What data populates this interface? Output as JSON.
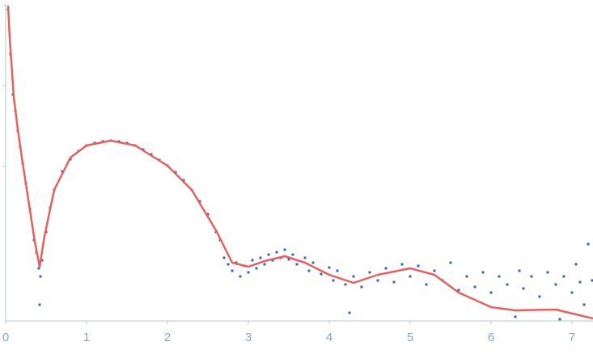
{
  "chart_data": {
    "type": "scatter",
    "xlim": [
      0,
      7.26
    ],
    "ylim": [
      0,
      3.9
    ],
    "xticks": [
      0,
      1,
      2,
      3,
      4,
      5,
      6,
      7
    ],
    "series": [
      {
        "type": "scatter",
        "color": "#3a66b8",
        "x": [
          0.03,
          0.06,
          0.09,
          0.12,
          0.15,
          0.18,
          0.21,
          0.25,
          0.3,
          0.35,
          0.38,
          0.41,
          0.42,
          0.43,
          0.45,
          0.5,
          0.55,
          0.6,
          0.7,
          0.8,
          0.9,
          1.0,
          1.1,
          1.2,
          1.3,
          1.4,
          1.5,
          1.6,
          1.7,
          1.8,
          1.9,
          2.0,
          2.1,
          2.2,
          2.3,
          2.4,
          2.5,
          2.6,
          2.65,
          2.7,
          2.75,
          2.8,
          2.85,
          2.9,
          2.95,
          3.0,
          3.05,
          3.1,
          3.15,
          3.2,
          3.25,
          3.3,
          3.35,
          3.4,
          3.45,
          3.5,
          3.55,
          3.6,
          3.7,
          3.75,
          3.8,
          3.9,
          4.0,
          4.05,
          4.1,
          4.2,
          4.25,
          4.3,
          4.4,
          4.5,
          4.6,
          4.7,
          4.8,
          4.9,
          5.0,
          5.1,
          5.2,
          5.3,
          5.4,
          5.5,
          5.6,
          5.7,
          5.8,
          5.9,
          6.0,
          6.1,
          6.2,
          6.3,
          6.35,
          6.4,
          6.5,
          6.6,
          6.7,
          6.8,
          6.85,
          6.9,
          7.0,
          7.05,
          7.1,
          7.15,
          7.2,
          7.25
        ],
        "values": [
          3.85,
          3.3,
          2.8,
          2.6,
          2.35,
          2.15,
          1.95,
          1.7,
          1.38,
          1.0,
          0.85,
          0.65,
          0.2,
          0.55,
          0.75,
          1.1,
          1.4,
          1.62,
          1.85,
          2.0,
          2.1,
          2.17,
          2.2,
          2.22,
          2.23,
          2.22,
          2.2,
          2.17,
          2.12,
          2.06,
          1.99,
          1.92,
          1.84,
          1.74,
          1.62,
          1.48,
          1.32,
          1.1,
          1.0,
          0.78,
          0.7,
          0.62,
          0.72,
          0.55,
          0.68,
          0.6,
          0.75,
          0.65,
          0.78,
          0.7,
          0.82,
          0.75,
          0.85,
          0.78,
          0.88,
          0.76,
          0.82,
          0.7,
          0.78,
          0.62,
          0.72,
          0.58,
          0.66,
          0.5,
          0.62,
          0.45,
          0.1,
          0.55,
          0.42,
          0.6,
          0.5,
          0.65,
          0.48,
          0.7,
          0.55,
          0.68,
          0.45,
          0.62,
          0.5,
          0.72,
          0.38,
          0.55,
          0.42,
          0.6,
          0.35,
          0.55,
          0.45,
          0.05,
          0.62,
          0.4,
          0.55,
          0.3,
          0.6,
          0.45,
          0.02,
          0.55,
          0.35,
          0.7,
          0.48,
          0.2,
          0.95,
          0.5
        ]
      },
      {
        "type": "line",
        "color": "#e8605e",
        "x": [
          0.03,
          0.05,
          0.1,
          0.15,
          0.2,
          0.3,
          0.36,
          0.42,
          0.48,
          0.6,
          0.8,
          1.0,
          1.3,
          1.6,
          2.0,
          2.3,
          2.6,
          2.8,
          3.0,
          3.2,
          3.45,
          3.7,
          4.0,
          4.3,
          4.6,
          5.0,
          5.3,
          5.6,
          6.0,
          6.3,
          6.8,
          7.26
        ],
        "values": [
          3.9,
          3.5,
          2.77,
          2.37,
          2.02,
          1.37,
          0.98,
          0.67,
          1.05,
          1.62,
          2.02,
          2.17,
          2.23,
          2.17,
          1.92,
          1.62,
          1.12,
          0.72,
          0.67,
          0.74,
          0.8,
          0.72,
          0.57,
          0.47,
          0.57,
          0.65,
          0.57,
          0.35,
          0.17,
          0.13,
          0.14,
          0.03
        ]
      }
    ]
  }
}
